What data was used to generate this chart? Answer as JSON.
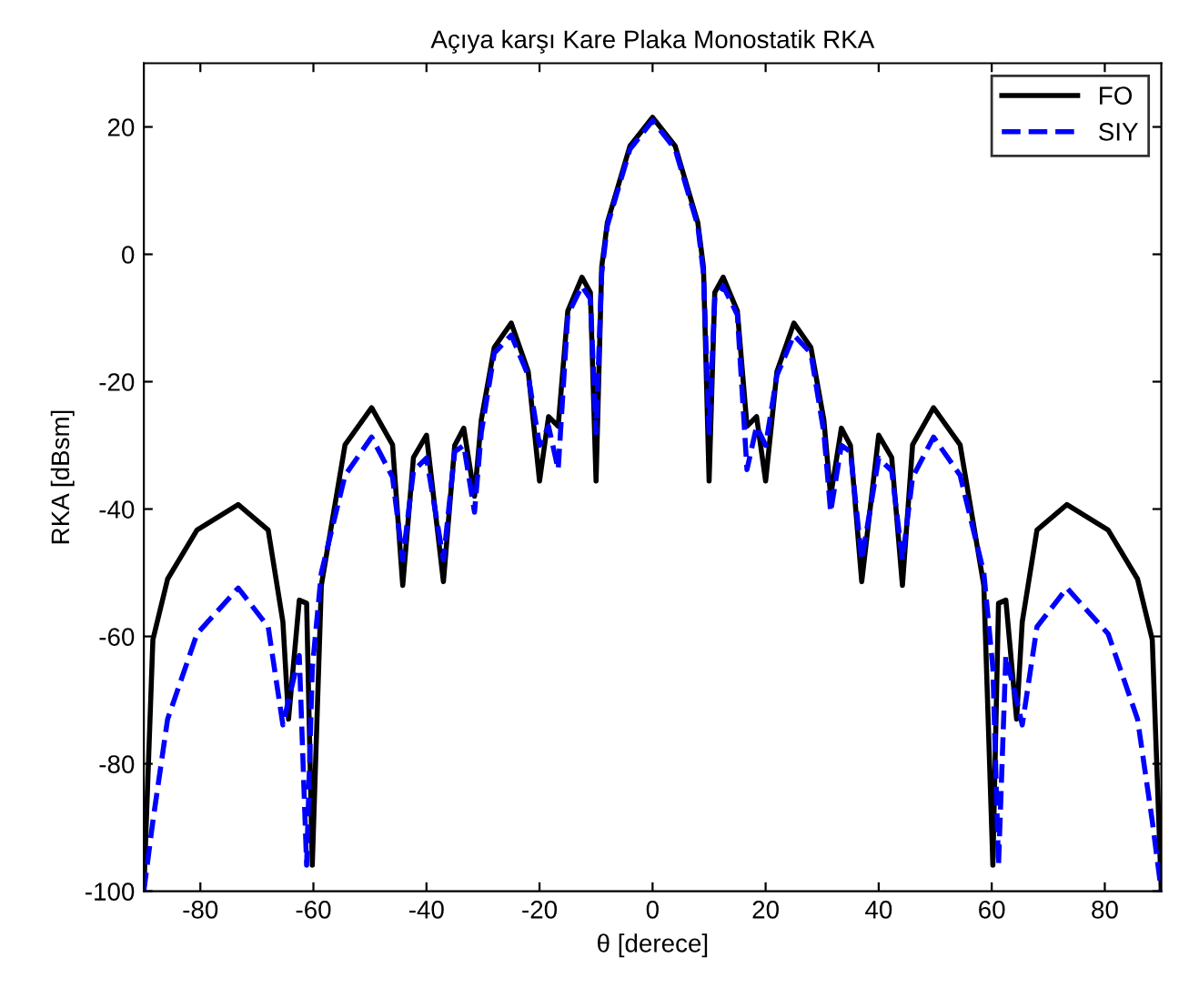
{
  "chart_data": {
    "type": "line",
    "title": "Açıya karşı Kare Plaka Monostatik RKA",
    "xlabel": "θ [derece]",
    "ylabel": "RKA [dBsm]",
    "x": [
      -90,
      -88.4,
      -85.8,
      -80.6,
      -73.3,
      -68,
      -65.4,
      -64.4,
      -62.5,
      -61.2,
      -60.2,
      -58.6,
      -54.4,
      -49.7,
      -46,
      -44.2,
      -42.3,
      -40,
      -37,
      -35,
      -33.4,
      -31.5,
      -30.3,
      -28,
      -25,
      -22,
      -20,
      -18.4,
      -16.7,
      -15,
      -12.5,
      -11,
      -10,
      -9,
      -8,
      -4,
      0,
      4,
      8,
      9,
      10,
      11,
      12.5,
      15,
      16.7,
      18.4,
      20,
      22,
      25,
      28,
      30.3,
      31.5,
      33.4,
      35,
      37,
      40,
      42.3,
      44.2,
      46,
      49.7,
      54.4,
      58.6,
      60.2,
      61.2,
      62.5,
      64.4,
      65.4,
      68,
      73.3,
      80.6,
      85.8,
      88.4,
      90
    ],
    "series": [
      {
        "name": "FO",
        "color": "#000000",
        "line_style": "solid",
        "values": [
          -100,
          -60.5,
          -51,
          -43.3,
          -39.3,
          -43.3,
          -57.7,
          -73,
          -54.3,
          -54.8,
          -95.9,
          -52,
          -29.9,
          -24.1,
          -29.9,
          -52,
          -31.9,
          -28.4,
          -51.4,
          -30,
          -27.3,
          -38,
          -26,
          -14.6,
          -10.8,
          -18.4,
          -35.6,
          -25.5,
          -27,
          -8.9,
          -3.6,
          -6,
          -35.6,
          -2,
          5,
          17,
          21.5,
          17,
          5,
          -2,
          -35.6,
          -6,
          -3.6,
          -8.9,
          -27,
          -25.5,
          -35.6,
          -18.4,
          -10.8,
          -14.6,
          -26,
          -38,
          -27.3,
          -30,
          -51.4,
          -28.4,
          -31.9,
          -52,
          -29.9,
          -24.1,
          -29.9,
          -52,
          -95.9,
          -54.8,
          -54.3,
          -73,
          -57.7,
          -43.3,
          -39.3,
          -43.3,
          -51,
          -60.5,
          -100
        ]
      },
      {
        "name": "SIY",
        "color": "#0000ff",
        "line_style": "dashed",
        "values": [
          -100,
          -89,
          -73,
          -59.6,
          -52.4,
          -58.5,
          -73.9,
          -70,
          -63,
          -95.9,
          -65,
          -50,
          -34.7,
          -28.7,
          -35,
          -48,
          -34,
          -32,
          -48,
          -31,
          -30,
          -40.5,
          -28,
          -15.5,
          -12.7,
          -19,
          -30,
          -27,
          -33.8,
          -9.5,
          -5,
          -7,
          -28,
          -3,
          4.5,
          16.5,
          21,
          16.5,
          4.5,
          -3,
          -28,
          -7,
          -5,
          -9.5,
          -33.8,
          -27,
          -30,
          -19,
          -12.7,
          -15.5,
          -28,
          -40.5,
          -30,
          -31,
          -48,
          -32,
          -34,
          -48,
          -35,
          -28.7,
          -34.7,
          -50,
          -65,
          -95.9,
          -63,
          -70,
          -73.9,
          -58.5,
          -52.4,
          -59.6,
          -73,
          -89,
          -100
        ]
      }
    ],
    "xlim": [
      -90,
      90
    ],
    "ylim": [
      -100,
      30
    ],
    "xticks": [
      -80,
      -60,
      -40,
      -20,
      0,
      20,
      40,
      60,
      80
    ],
    "yticks": [
      -100,
      -80,
      -60,
      -40,
      -20,
      0,
      20
    ],
    "grid": false,
    "legend": "top right"
  }
}
